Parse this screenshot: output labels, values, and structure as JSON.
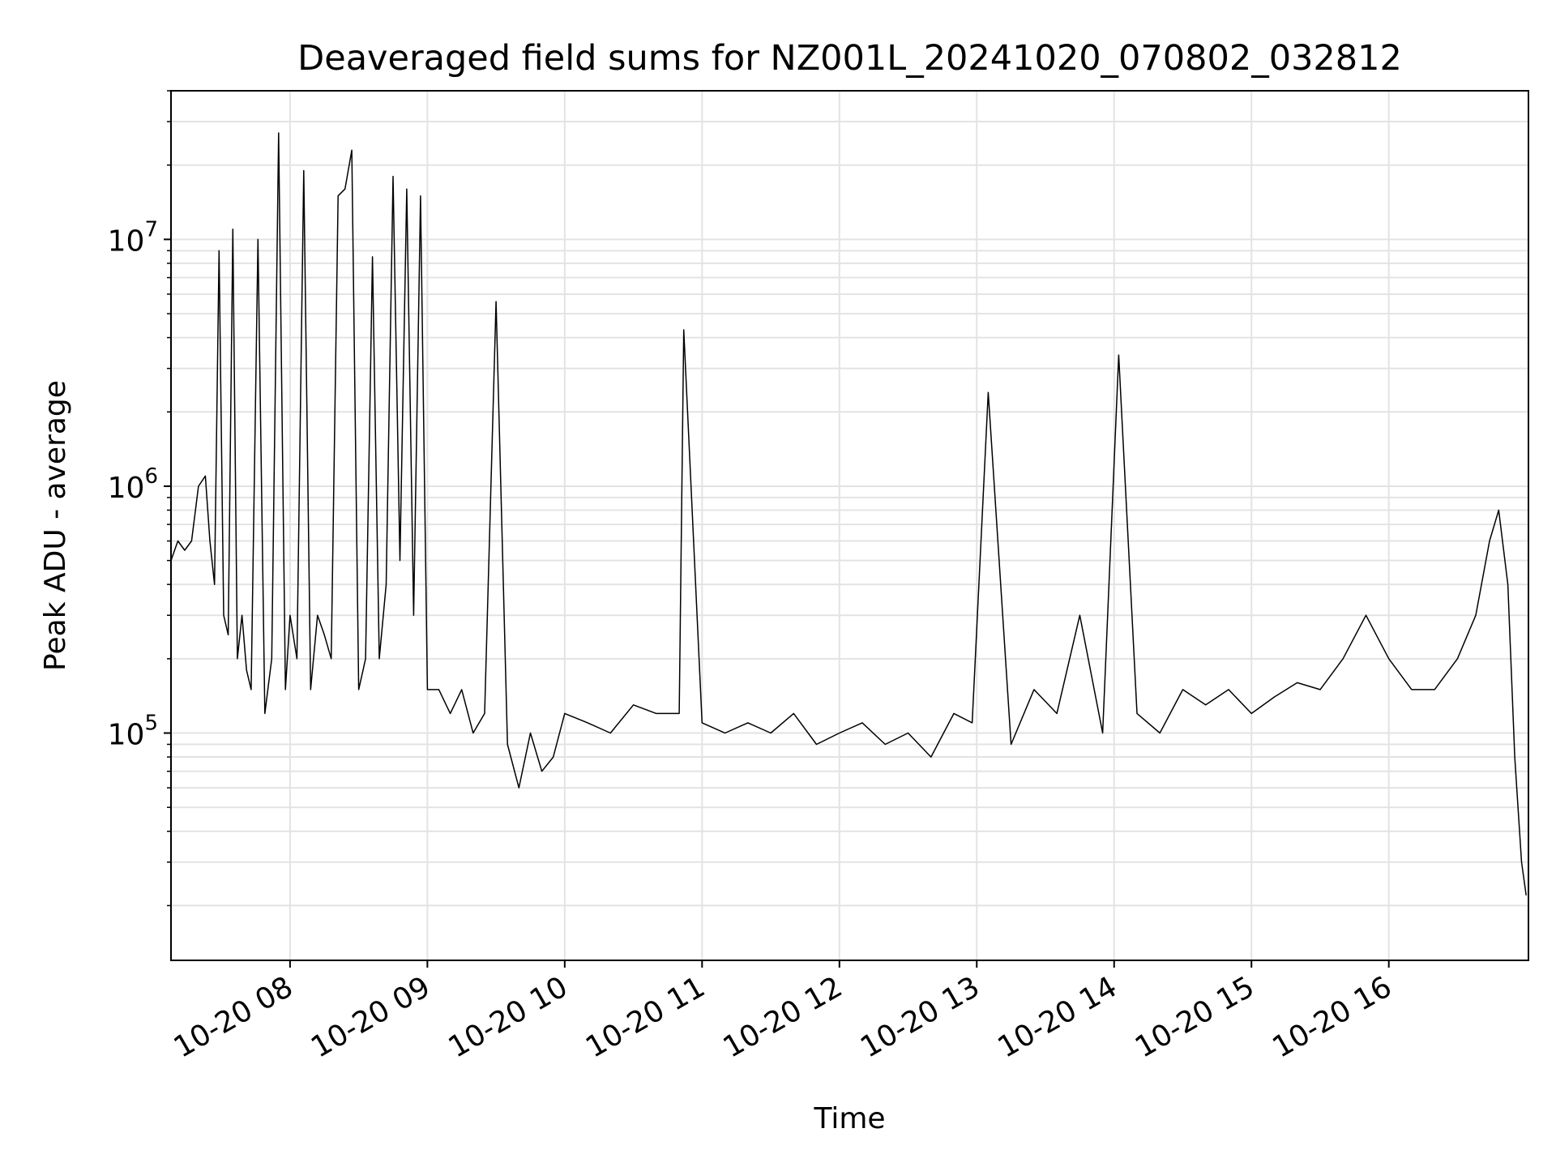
{
  "chart_data": {
    "type": "line",
    "title": "Deaveraged field sums for NZ001L_20241020_070802_032812",
    "xlabel": "Time",
    "ylabel": "Peak ADU - average",
    "yscale": "log",
    "ylim": [
      12000,
      40000000
    ],
    "xlim": [
      "2024-10-20 07:08",
      "2024-10-20 17:01"
    ],
    "grid": true,
    "x_tick_labels": [
      "10-20 08",
      "10-20 09",
      "10-20 10",
      "10-20 11",
      "10-20 12",
      "10-20 13",
      "10-20 14",
      "10-20 15",
      "10-20 16"
    ],
    "y_tick_labels": [
      {
        "base": "10",
        "exp": "5",
        "value": 100000
      },
      {
        "base": "10",
        "exp": "6",
        "value": 1000000
      },
      {
        "base": "10",
        "exp": "7",
        "value": 10000000
      }
    ],
    "line_color": "#000000",
    "series": [
      {
        "x": [
          "2024-10-20 07:08",
          "2024-10-20 07:11",
          "2024-10-20 07:14",
          "2024-10-20 07:17",
          "2024-10-20 07:20",
          "2024-10-20 07:23",
          "2024-10-20 07:25",
          "2024-10-20 07:27",
          "2024-10-20 07:29",
          "2024-10-20 07:31",
          "2024-10-20 07:33",
          "2024-10-20 07:35",
          "2024-10-20 07:37",
          "2024-10-20 07:39",
          "2024-10-20 07:41",
          "2024-10-20 07:43",
          "2024-10-20 07:46",
          "2024-10-20 07:49",
          "2024-10-20 07:52",
          "2024-10-20 07:55",
          "2024-10-20 07:58",
          "2024-10-20 08:00",
          "2024-10-20 08:03",
          "2024-10-20 08:06",
          "2024-10-20 08:09",
          "2024-10-20 08:12",
          "2024-10-20 08:15",
          "2024-10-20 08:18",
          "2024-10-20 08:21",
          "2024-10-20 08:24",
          "2024-10-20 08:27",
          "2024-10-20 08:30",
          "2024-10-20 08:33",
          "2024-10-20 08:36",
          "2024-10-20 08:39",
          "2024-10-20 08:42",
          "2024-10-20 08:45",
          "2024-10-20 08:48",
          "2024-10-20 08:51",
          "2024-10-20 08:54",
          "2024-10-20 08:57",
          "2024-10-20 09:00",
          "2024-10-20 09:05",
          "2024-10-20 09:10",
          "2024-10-20 09:15",
          "2024-10-20 09:20",
          "2024-10-20 09:25",
          "2024-10-20 09:30",
          "2024-10-20 09:35",
          "2024-10-20 09:40",
          "2024-10-20 09:45",
          "2024-10-20 09:50",
          "2024-10-20 09:55",
          "2024-10-20 10:00",
          "2024-10-20 10:10",
          "2024-10-20 10:20",
          "2024-10-20 10:30",
          "2024-10-20 10:40",
          "2024-10-20 10:50",
          "2024-10-20 10:52",
          "2024-10-20 11:00",
          "2024-10-20 11:10",
          "2024-10-20 11:20",
          "2024-10-20 11:30",
          "2024-10-20 11:40",
          "2024-10-20 11:50",
          "2024-10-20 12:00",
          "2024-10-20 12:10",
          "2024-10-20 12:20",
          "2024-10-20 12:30",
          "2024-10-20 12:40",
          "2024-10-20 12:50",
          "2024-10-20 12:58",
          "2024-10-20 13:05",
          "2024-10-20 13:15",
          "2024-10-20 13:25",
          "2024-10-20 13:35",
          "2024-10-20 13:45",
          "2024-10-20 13:55",
          "2024-10-20 14:02",
          "2024-10-20 14:10",
          "2024-10-20 14:20",
          "2024-10-20 14:30",
          "2024-10-20 14:40",
          "2024-10-20 14:50",
          "2024-10-20 15:00",
          "2024-10-20 15:10",
          "2024-10-20 15:20",
          "2024-10-20 15:30",
          "2024-10-20 15:40",
          "2024-10-20 15:50",
          "2024-10-20 16:00",
          "2024-10-20 16:10",
          "2024-10-20 16:20",
          "2024-10-20 16:30",
          "2024-10-20 16:38",
          "2024-10-20 16:44",
          "2024-10-20 16:48",
          "2024-10-20 16:52",
          "2024-10-20 16:55",
          "2024-10-20 16:58",
          "2024-10-20 17:00"
        ],
        "y": [
          500000,
          600000,
          550000,
          600000,
          1000000,
          1100000,
          600000,
          400000,
          9000000,
          300000,
          250000,
          11000000,
          200000,
          300000,
          180000,
          150000,
          10000000,
          120000,
          200000,
          27000000,
          150000,
          300000,
          200000,
          19000000,
          150000,
          300000,
          250000,
          200000,
          15000000,
          16000000,
          23000000,
          150000,
          200000,
          8500000,
          200000,
          400000,
          18000000,
          500000,
          16000000,
          300000,
          15000000,
          150000,
          150000,
          120000,
          150000,
          100000,
          120000,
          5600000,
          90000,
          60000,
          100000,
          70000,
          80000,
          120000,
          110000,
          100000,
          130000,
          120000,
          120000,
          4300000,
          110000,
          100000,
          110000,
          100000,
          120000,
          90000,
          100000,
          110000,
          90000,
          100000,
          80000,
          120000,
          110000,
          2400000,
          90000,
          150000,
          120000,
          300000,
          100000,
          3400000,
          120000,
          100000,
          150000,
          130000,
          150000,
          120000,
          140000,
          160000,
          150000,
          200000,
          300000,
          200000,
          150000,
          150000,
          200000,
          300000,
          600000,
          800000,
          400000,
          80000,
          30000,
          22000
        ]
      }
    ]
  }
}
